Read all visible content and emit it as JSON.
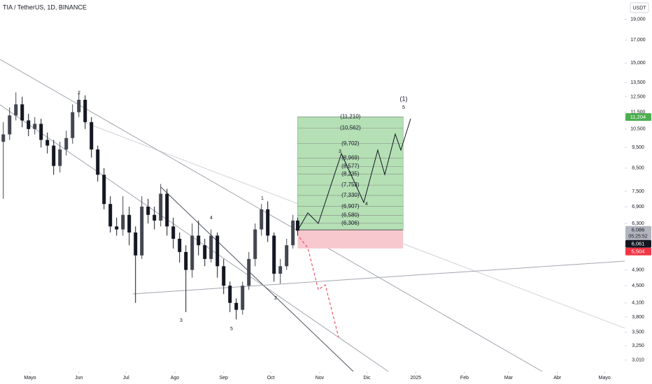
{
  "chart_data": {
    "type": "candlestick",
    "title": "TIA / TetherUS, 1D, BINANCE",
    "currency": "USDT",
    "log": true,
    "ylim": [
      2.83,
      21.1
    ],
    "yticks": [
      {
        "value": 19,
        "label": "19,000"
      },
      {
        "value": 17,
        "label": "17,000"
      },
      {
        "value": 15,
        "label": "15,000"
      },
      {
        "value": 13.5,
        "label": "13,500"
      },
      {
        "value": 12.5,
        "label": "12,500"
      },
      {
        "value": 11.5,
        "label": "11,500"
      },
      {
        "value": 10.5,
        "label": "10,500"
      },
      {
        "value": 9.5,
        "label": "9,500"
      },
      {
        "value": 8.5,
        "label": "8,500"
      },
      {
        "value": 7.5,
        "label": "7,500"
      },
      {
        "value": 6.9,
        "label": "6,900"
      },
      {
        "value": 6.3,
        "label": "6,300"
      },
      {
        "value": 5.5,
        "label": "5,500"
      },
      {
        "value": 4.9,
        "label": "4,900"
      },
      {
        "value": 4.5,
        "label": "4,500"
      },
      {
        "value": 4.1,
        "label": "4,100"
      },
      {
        "value": 3.8,
        "label": "3,800"
      },
      {
        "value": 3.5,
        "label": "3,500"
      },
      {
        "value": 3.25,
        "label": "3,250"
      },
      {
        "value": 3.01,
        "label": "3,010"
      }
    ],
    "xlim": [
      -19.1,
      377.8
    ],
    "xticks": [
      {
        "value": 0,
        "label": "Mayo"
      },
      {
        "value": 31,
        "label": "Jun"
      },
      {
        "value": 61,
        "label": "Jul"
      },
      {
        "value": 92,
        "label": "Ago"
      },
      {
        "value": 123,
        "label": "Sep"
      },
      {
        "value": 153,
        "label": "Oct"
      },
      {
        "value": 184,
        "label": "Nov"
      },
      {
        "value": 214,
        "label": "Dic"
      },
      {
        "value": 245,
        "label": "2025"
      },
      {
        "value": 276,
        "label": "Feb"
      },
      {
        "value": 304,
        "label": "Mar"
      },
      {
        "value": 335,
        "label": "Abr"
      },
      {
        "value": 365,
        "label": "Mayo"
      }
    ],
    "up_color": "#434651",
    "down_color": "#131722",
    "candles": {
      "x": [
        -17,
        -13,
        -9,
        -5,
        -1,
        3,
        7,
        11,
        15,
        19,
        23,
        27,
        31,
        35,
        39,
        43,
        47,
        51,
        55,
        59,
        63,
        67,
        71,
        75,
        79,
        83,
        87,
        91,
        95,
        99,
        103,
        107,
        111,
        115,
        119,
        123,
        127,
        131,
        135,
        139,
        143,
        147,
        151,
        155,
        159,
        163,
        167,
        170
      ],
      "open": [
        9.8,
        10.2,
        11.3,
        12.0,
        11.0,
        10.5,
        10.8,
        9.9,
        9.6,
        8.6,
        9.4,
        10.0,
        11.5,
        12.3,
        10.9,
        9.4,
        8.2,
        7.0,
        6.2,
        6.1,
        6.6,
        6.0,
        5.3,
        6.9,
        6.6,
        6.4,
        7.4,
        6.2,
        5.8,
        5.4,
        4.9,
        5.9,
        5.6,
        5.2,
        5.9,
        5.0,
        4.5,
        4.1,
        3.95,
        4.5,
        5.2,
        6.1,
        6.8,
        5.9,
        4.8,
        5.0,
        5.6,
        6.4
      ],
      "high": [
        10.9,
        11.8,
        12.8,
        12.5,
        11.4,
        11.2,
        11.1,
        10.3,
        9.9,
        9.8,
        10.4,
        12.0,
        12.8,
        12.6,
        11.2,
        9.6,
        8.5,
        7.3,
        6.5,
        7.3,
        6.9,
        6.2,
        7.3,
        7.2,
        6.9,
        7.8,
        7.6,
        6.5,
        6.0,
        5.6,
        6.3,
        6.4,
        5.8,
        6.1,
        6.0,
        5.2,
        4.6,
        4.2,
        4.6,
        5.4,
        6.3,
        7.0,
        7.1,
        6.0,
        5.2,
        5.8,
        6.6,
        6.5
      ],
      "low": [
        7.2,
        9.9,
        11.0,
        10.6,
        10.1,
        10.2,
        9.5,
        9.2,
        8.2,
        8.3,
        9.1,
        9.7,
        11.2,
        10.5,
        9.0,
        7.9,
        6.8,
        6.0,
        5.9,
        5.9,
        5.6,
        4.1,
        5.2,
        6.3,
        6.1,
        6.2,
        5.9,
        5.5,
        5.1,
        3.9,
        4.7,
        5.3,
        5.0,
        5.1,
        4.7,
        4.3,
        3.9,
        3.75,
        3.85,
        4.4,
        5.0,
        5.9,
        5.7,
        4.6,
        4.55,
        4.9,
        5.5,
        5.9
      ],
      "close": [
        10.2,
        11.3,
        12.0,
        11.0,
        10.5,
        10.8,
        9.9,
        9.6,
        8.6,
        9.4,
        10.0,
        11.5,
        12.3,
        10.9,
        9.4,
        8.2,
        7.0,
        6.2,
        6.1,
        6.6,
        6.0,
        5.3,
        6.9,
        6.6,
        6.4,
        7.4,
        6.2,
        5.8,
        5.4,
        4.9,
        5.9,
        5.6,
        5.2,
        5.9,
        5.0,
        4.5,
        4.1,
        3.95,
        4.5,
        5.2,
        6.1,
        6.8,
        5.9,
        4.8,
        5.0,
        5.6,
        6.4,
        6.061
      ]
    },
    "levels": [
      {
        "value": 11.21,
        "label": "(11,210)"
      },
      {
        "value": 10.562,
        "label": "(10,562)"
      },
      {
        "value": 9.702,
        "label": "(9,702)"
      },
      {
        "value": 8.969,
        "label": "(8,969)"
      },
      {
        "value": 8.577,
        "label": "(8,577)"
      },
      {
        "value": 8.235,
        "label": "(8,235)"
      },
      {
        "value": 7.753,
        "label": "(7,753)"
      },
      {
        "value": 7.33,
        "label": "(7,330)"
      },
      {
        "value": 6.907,
        "label": "(6,907)"
      },
      {
        "value": 6.58,
        "label": "(6,580)"
      },
      {
        "value": 6.306,
        "label": "(6,306)"
      }
    ],
    "position_end": 237,
    "price_tags": [
      {
        "value": 11.204,
        "label": "11,204",
        "color": "#4caf50"
      },
      {
        "value": 6.086,
        "label": "6,086",
        "color": "#b2b5be"
      },
      {
        "value": 6.061,
        "label": "6,061",
        "color": "#131722"
      },
      {
        "value": 5.504,
        "label": "5,504",
        "color": "#f23645"
      }
    ],
    "countdown": "05:25:52",
    "wave_labels": [
      "2",
      "3",
      "4",
      "5",
      "1",
      "2",
      "3",
      "4",
      "(1)",
      "5"
    ]
  }
}
